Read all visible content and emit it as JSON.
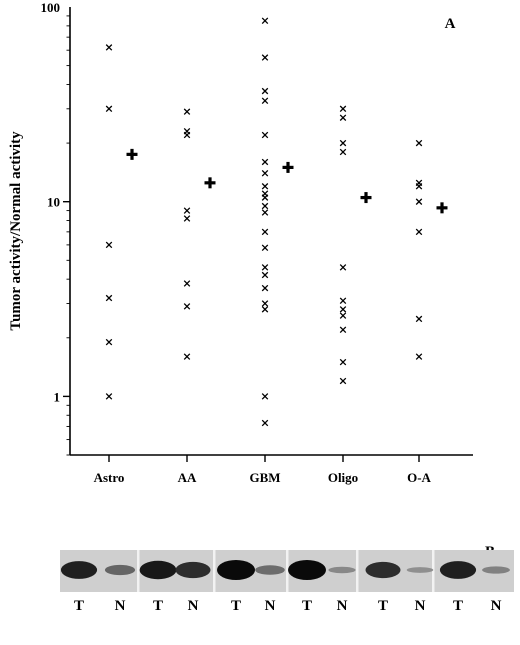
{
  "chart_data": {
    "type": "scatter",
    "panel_label": "A",
    "ylabel": "Tumor activity/Normal activity",
    "yscale": "log",
    "ylim": [
      0.5,
      100
    ],
    "y_ticks": [
      {
        "value": 1,
        "label": "1"
      },
      {
        "value": 10,
        "label": "10"
      },
      {
        "value": 100,
        "label": "100"
      }
    ],
    "categories": [
      "Astro",
      "AA",
      "GBM",
      "Oligo",
      "O-A"
    ],
    "series": [
      {
        "marker": "x",
        "points": {
          "Astro": [
            62,
            30,
            6.0,
            3.2,
            1.9,
            1.0
          ],
          "AA": [
            29,
            23,
            22,
            9.0,
            8.2,
            3.8,
            2.9,
            1.6
          ],
          "GBM": [
            85,
            55,
            37,
            33,
            22,
            16,
            14,
            12,
            11,
            10.5,
            9.5,
            8.8,
            7.0,
            5.8,
            4.6,
            4.2,
            3.6,
            3.0,
            2.8,
            1.0,
            0.73
          ],
          "Oligo": [
            30,
            27,
            20,
            18,
            4.6,
            3.1,
            2.8,
            2.6,
            2.2,
            1.5,
            1.2
          ],
          "O-A": [
            20,
            12.5,
            12,
            10,
            7.0,
            2.5,
            1.6
          ]
        }
      },
      {
        "marker": "plus",
        "points": {
          "Astro": [
            17.5
          ],
          "AA": [
            12.5
          ],
          "GBM": [
            15
          ],
          "Oligo": [
            10.5
          ],
          "O-A": [
            9.3
          ]
        }
      }
    ]
  },
  "blot": {
    "panel_label": "B",
    "lanes": [
      {
        "label": "T",
        "intensity": 0.85
      },
      {
        "label": "N",
        "intensity": 0.35
      },
      {
        "label": "T",
        "intensity": 0.9
      },
      {
        "label": "N",
        "intensity": 0.75
      },
      {
        "label": "T",
        "intensity": 1.0
      },
      {
        "label": "N",
        "intensity": 0.3
      },
      {
        "label": "T",
        "intensity": 1.0
      },
      {
        "label": "N",
        "intensity": 0.1
      },
      {
        "label": "T",
        "intensity": 0.75
      },
      {
        "label": "N",
        "intensity": 0.05
      },
      {
        "label": "T",
        "intensity": 0.85
      },
      {
        "label": "N",
        "intensity": 0.15
      }
    ]
  }
}
